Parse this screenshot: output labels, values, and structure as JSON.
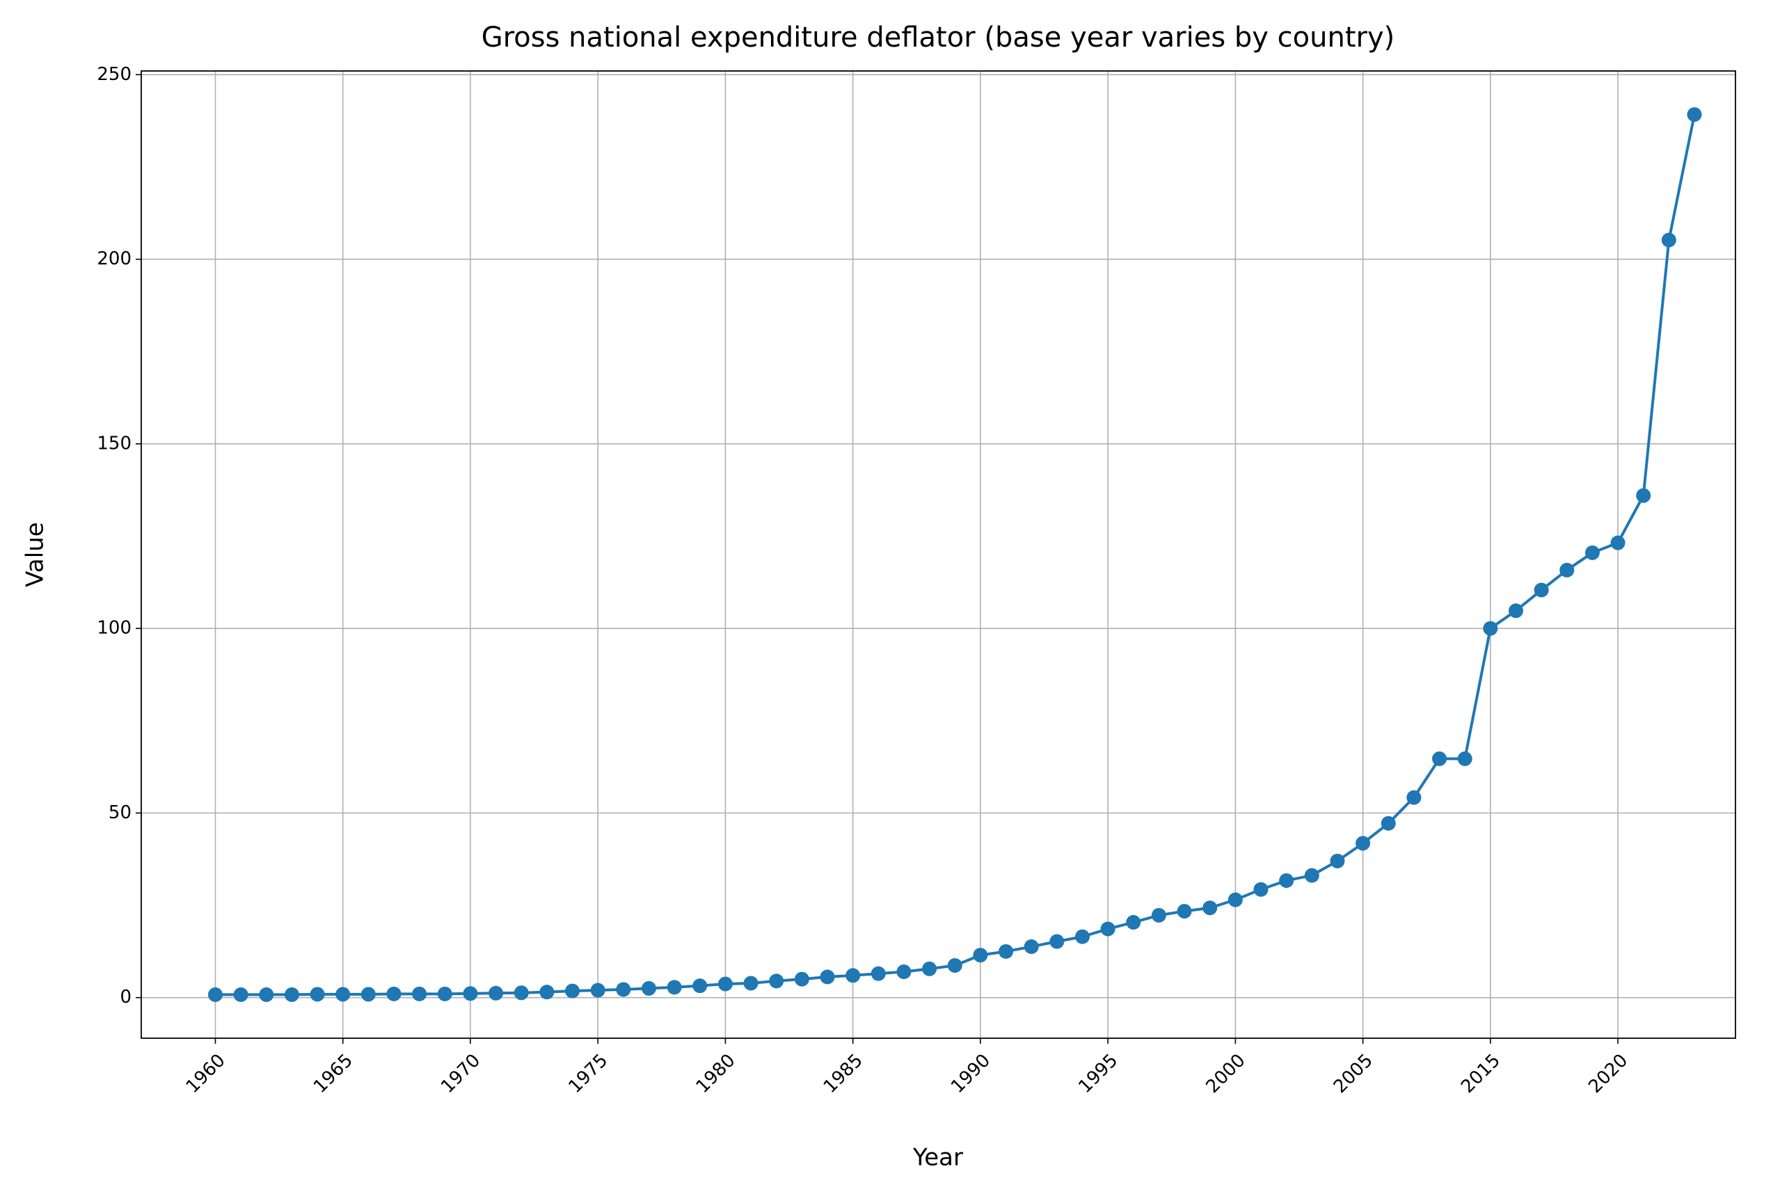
{
  "chart_data": {
    "type": "line",
    "title": "Gross national expenditure deflator (base year varies by country)",
    "x_label": "Year",
    "y_label": "Value",
    "categories": [
      "1960",
      null,
      null,
      null,
      null,
      "1965",
      null,
      null,
      null,
      null,
      "1970",
      null,
      null,
      null,
      null,
      "1975",
      null,
      null,
      null,
      null,
      "1980",
      null,
      null,
      null,
      null,
      "1985",
      null,
      null,
      null,
      null,
      "1990",
      null,
      null,
      null,
      null,
      "1995",
      null,
      null,
      null,
      null,
      "2000",
      null,
      null,
      null,
      null,
      "2005",
      null,
      null,
      null,
      null,
      "2015",
      null,
      null,
      null,
      null,
      "2020",
      null,
      null,
      null
    ],
    "series": [
      {
        "name": "Value",
        "color": "#1f77b4",
        "values": [
          0.8,
          0.8,
          0.8,
          0.8,
          0.9,
          0.9,
          0.9,
          1.0,
          1.0,
          1.0,
          1.1,
          1.2,
          1.3,
          1.5,
          1.8,
          2.0,
          2.2,
          2.5,
          2.8,
          3.2,
          3.7,
          3.9,
          4.5,
          5.0,
          5.6,
          6.0,
          6.5,
          7.0,
          7.8,
          8.7,
          11.5,
          12.5,
          13.8,
          15.2,
          16.5,
          18.6,
          20.4,
          22.3,
          23.4,
          24.3,
          26.5,
          29.3,
          31.7,
          33.1,
          37.0,
          41.8,
          47.2,
          54.2,
          64.7,
          64.7,
          100,
          104.8,
          110.4,
          115.8,
          120.5,
          123.2,
          136,
          205.2,
          239.2
        ]
      }
    ],
    "ylim": [
      -11,
      251
    ],
    "yticks": [
      0,
      50,
      100,
      150,
      200,
      250
    ],
    "grid": true
  }
}
